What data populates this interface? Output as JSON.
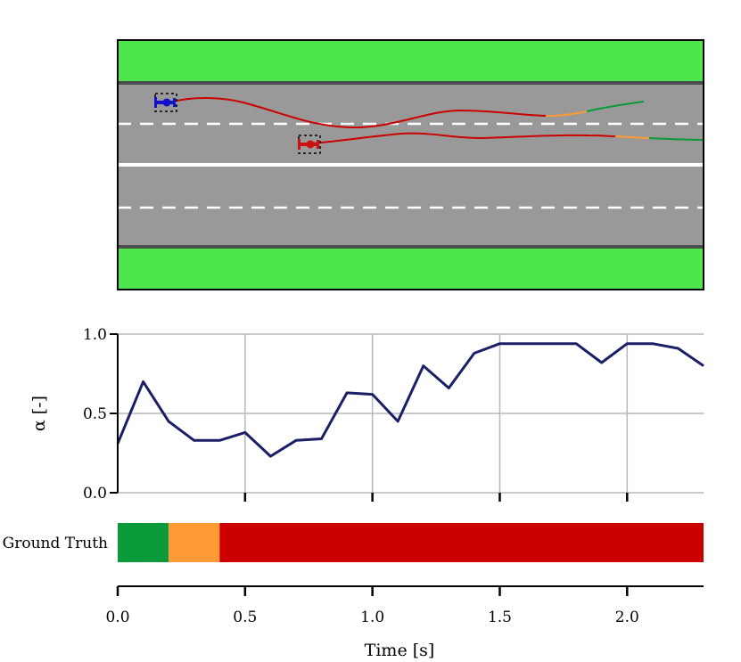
{
  "chart_data": [
    {
      "type": "road-scene",
      "colors": {
        "grass": "#4de64d",
        "road": "#999999",
        "road_edge": "#4d4d4d",
        "lane_marking": "#ffffff",
        "trajectory_safe": "#0a9a3a",
        "trajectory_caution": "#ff9933",
        "trajectory_danger": "#cc0000",
        "ego_vehicle": "#1111cc",
        "other_vehicle": "#cc1111"
      },
      "vehicles": [
        {
          "name": "ego",
          "color": "#1111cc",
          "icon": "blue-car-icon"
        },
        {
          "name": "other",
          "color": "#cc1111",
          "icon": "red-car-icon"
        }
      ]
    },
    {
      "type": "line",
      "ylabel": "α [-]",
      "ylim": [
        0.0,
        1.0
      ],
      "xlim": [
        0.0,
        2.3
      ],
      "yticks": [
        "0.0",
        "0.5",
        "1.0"
      ],
      "grid": true,
      "color": "#1a1f66",
      "x": [
        0.0,
        0.1,
        0.2,
        0.3,
        0.4,
        0.5,
        0.6,
        0.7,
        0.8,
        0.9,
        1.0,
        1.1,
        1.2,
        1.3,
        1.4,
        1.5,
        1.6,
        1.7,
        1.8,
        1.9,
        2.0,
        2.1,
        2.2,
        2.3
      ],
      "y": [
        0.31,
        0.7,
        0.45,
        0.33,
        0.33,
        0.38,
        0.23,
        0.33,
        0.34,
        0.63,
        0.62,
        0.45,
        0.8,
        0.66,
        0.88,
        0.94,
        0.94,
        0.94,
        0.94,
        0.82,
        0.94,
        0.94,
        0.91,
        0.8
      ]
    },
    {
      "type": "bar",
      "row_label": "Ground Truth",
      "xlabel": "Time [s]",
      "xticks": [
        "0.0",
        "0.5",
        "1.0",
        "1.5",
        "2.0"
      ],
      "xlim": [
        0.0,
        2.3
      ],
      "segments": [
        {
          "start": 0.0,
          "end": 0.2,
          "color": "#0a9a3a"
        },
        {
          "start": 0.2,
          "end": 0.4,
          "color": "#ff9933"
        },
        {
          "start": 0.4,
          "end": 2.3,
          "color": "#cc0000"
        }
      ]
    }
  ]
}
